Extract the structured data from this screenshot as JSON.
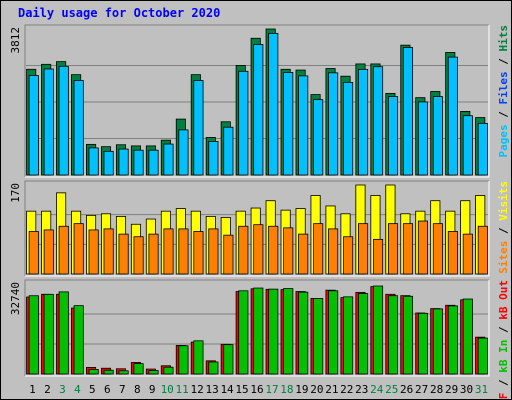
{
  "page": {
    "title": "Daily usage for October 2020"
  },
  "colors": {
    "background": "#c0c0c0",
    "panel": "#c0c0c0",
    "grid": "#808080",
    "title": "#0000ff",
    "hits": "#008040",
    "files": "#0040ff",
    "pages": "#00c0ff",
    "visits": "#ffff00",
    "sites": "#ff8000",
    "kb_in": "#00c000",
    "kb_out": "#ff0000",
    "kb_f": "#ff0000",
    "weekday_label": "#000000",
    "weekend_label": "#008040"
  },
  "chart_data": [
    {
      "type": "bar",
      "panel": "top",
      "ylabel": "3812",
      "ylim": [
        0,
        3812
      ],
      "legend": [
        {
          "key": "pages",
          "label": "Pages"
        },
        {
          "key": "files",
          "label": "Files"
        },
        {
          "key": "hits",
          "label": "Hits"
        }
      ],
      "legend_separator": " / ",
      "categories": [
        "1",
        "2",
        "3",
        "4",
        "5",
        "6",
        "7",
        "8",
        "9",
        "10",
        "11",
        "12",
        "13",
        "14",
        "15",
        "16",
        "17",
        "18",
        "19",
        "20",
        "21",
        "22",
        "23",
        "24",
        "25",
        "26",
        "27",
        "28",
        "29",
        "30",
        "31"
      ],
      "weekend_days": [
        "3",
        "4",
        "10",
        "11",
        "17",
        "18",
        "24",
        "25",
        "31"
      ],
      "series": [
        {
          "name": "Hits",
          "color_key": "hits",
          "values": [
            2760,
            2890,
            2960,
            2620,
            800,
            740,
            790,
            760,
            760,
            910,
            1460,
            2620,
            980,
            1390,
            2860,
            3570,
            3812,
            2760,
            2740,
            2100,
            2780,
            2580,
            2900,
            2900,
            2130,
            3390,
            2020,
            2180,
            3200,
            1660,
            1500
          ]
        },
        {
          "name": "Pages",
          "color_key": "pages",
          "values": [
            2650,
            2820,
            2890,
            2520,
            760,
            670,
            730,
            700,
            700,
            860,
            1230,
            2520,
            930,
            1300,
            2760,
            3460,
            3750,
            2730,
            2640,
            2020,
            2720,
            2470,
            2810,
            2880,
            2100,
            3380,
            1960,
            2100,
            3130,
            1600,
            1400
          ]
        }
      ]
    },
    {
      "type": "bar",
      "panel": "middle",
      "ylabel": "170",
      "ylim": [
        0,
        170
      ],
      "legend": [
        {
          "key": "sites",
          "label": "Sites"
        },
        {
          "key": "visits",
          "label": "Visits"
        }
      ],
      "legend_separator": " / ",
      "categories": [
        "1",
        "2",
        "3",
        "4",
        "5",
        "6",
        "7",
        "8",
        "9",
        "10",
        "11",
        "12",
        "13",
        "14",
        "15",
        "16",
        "17",
        "18",
        "19",
        "20",
        "21",
        "22",
        "23",
        "24",
        "25",
        "26",
        "27",
        "28",
        "29",
        "30",
        "31"
      ],
      "series": [
        {
          "name": "Visits",
          "color_key": "visits",
          "values": [
            120,
            120,
            155,
            120,
            112,
            115,
            110,
            95,
            105,
            120,
            125,
            120,
            110,
            108,
            120,
            126,
            140,
            122,
            125,
            150,
            130,
            115,
            170,
            150,
            170,
            115,
            120,
            140,
            120,
            140,
            150
          ]
        },
        {
          "name": "Sites",
          "color_key": "sites",
          "values": [
            85,
            88,
            95,
            100,
            88,
            90,
            80,
            75,
            80,
            90,
            90,
            85,
            90,
            78,
            95,
            98,
            95,
            92,
            80,
            100,
            90,
            75,
            100,
            70,
            100,
            100,
            105,
            100,
            85,
            80,
            95
          ]
        }
      ]
    },
    {
      "type": "bar",
      "panel": "bottom",
      "ylabel": "32740",
      "ylim": [
        0,
        32740
      ],
      "legend": [
        {
          "key": "kb_f",
          "label": "kB F"
        },
        {
          "key": "kb_in",
          "label": "kB In"
        },
        {
          "key": "kb_out",
          "label": "kB Out"
        }
      ],
      "legend_separator": " / ",
      "categories": [
        "1",
        "2",
        "3",
        "4",
        "5",
        "6",
        "7",
        "8",
        "9",
        "10",
        "11",
        "12",
        "13",
        "14",
        "15",
        "16",
        "17",
        "18",
        "19",
        "20",
        "21",
        "22",
        "23",
        "24",
        "25",
        "26",
        "27",
        "28",
        "29",
        "30",
        "31"
      ],
      "series": [
        {
          "name": "kB Out",
          "color_key": "kb_out",
          "values": [
            28000,
            29000,
            29000,
            24000,
            2400,
            2100,
            1900,
            4200,
            1800,
            3000,
            10400,
            11600,
            4800,
            10800,
            30000,
            31000,
            30800,
            30700,
            30000,
            27500,
            30500,
            27800,
            29700,
            31800,
            29000,
            28500,
            22200,
            23800,
            25000,
            27000,
            13400
          ]
        },
        {
          "name": "kB In",
          "color_key": "kb_in",
          "values": [
            29200,
            29700,
            30600,
            25600,
            2400,
            2100,
            1900,
            4500,
            2000,
            3200,
            11000,
            12800,
            5100,
            11400,
            31000,
            32000,
            31600,
            31800,
            30500,
            28200,
            31000,
            28800,
            30000,
            32740,
            29200,
            29000,
            22800,
            24400,
            25500,
            28000,
            13800
          ]
        }
      ]
    }
  ]
}
